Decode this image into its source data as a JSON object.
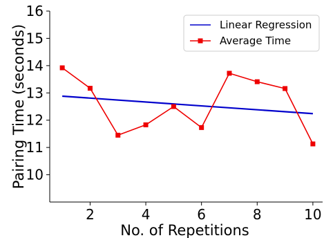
{
  "chart_data": {
    "type": "line",
    "title": "",
    "xlabel": "No. of Repetitions",
    "ylabel": "Pairing Time (seconds)",
    "xlim": [
      0.55,
      10.35
    ],
    "ylim": [
      9,
      16
    ],
    "xticks": [
      2,
      4,
      6,
      8,
      10
    ],
    "yticks": [
      10,
      11,
      12,
      13,
      14,
      15,
      16
    ],
    "grid": false,
    "legend_position": "top-right",
    "series": [
      {
        "name": "Linear Regression",
        "color": "#0000cc",
        "marker": "none",
        "x": [
          1,
          10
        ],
        "y": [
          12.88,
          12.24
        ]
      },
      {
        "name": "Average Time",
        "color": "#ee0000",
        "marker": "square",
        "x": [
          1,
          2,
          3,
          4,
          5,
          6,
          7,
          8,
          9,
          10
        ],
        "y": [
          13.92,
          13.17,
          11.45,
          11.83,
          12.5,
          11.73,
          13.72,
          13.41,
          13.16,
          11.13
        ]
      }
    ]
  }
}
